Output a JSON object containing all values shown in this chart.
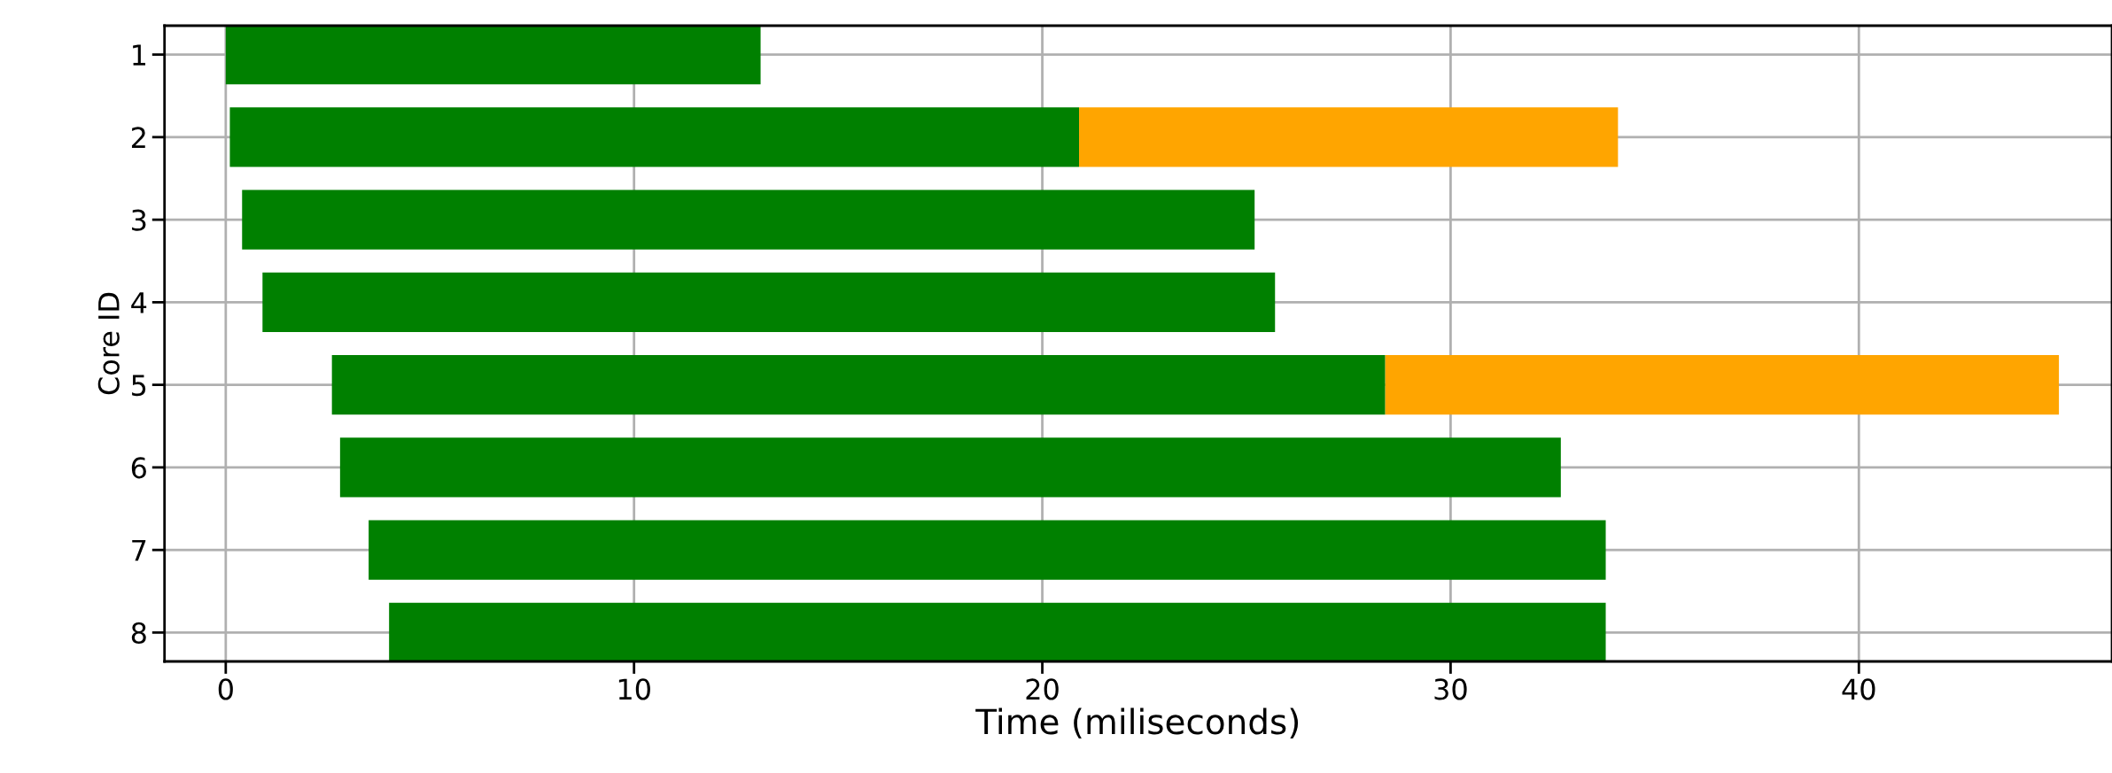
{
  "chart_data": {
    "type": "bar",
    "orientation": "horizontal",
    "xlabel": "Time (miliseconds)",
    "ylabel": "Core ID",
    "categories": [
      "1",
      "2",
      "3",
      "4",
      "5",
      "6",
      "7",
      "8"
    ],
    "series": [
      {
        "color": "#008000",
        "base": [
          0,
          0.1,
          0.4,
          0.9,
          2.6,
          2.8,
          3.5,
          4.0
        ],
        "values": [
          13.1,
          20.8,
          24.8,
          24.8,
          25.8,
          29.9,
          30.3,
          29.8
        ]
      },
      {
        "color": "#ffa500",
        "base": [
          null,
          20.9,
          null,
          null,
          28.4,
          null,
          null,
          null
        ],
        "values": [
          null,
          13.2,
          null,
          null,
          16.5,
          null,
          null,
          null
        ]
      }
    ],
    "xlim": [
      -1.5,
      46.2
    ],
    "xticks": [
      0,
      10,
      20,
      30,
      40
    ],
    "grid": true
  }
}
